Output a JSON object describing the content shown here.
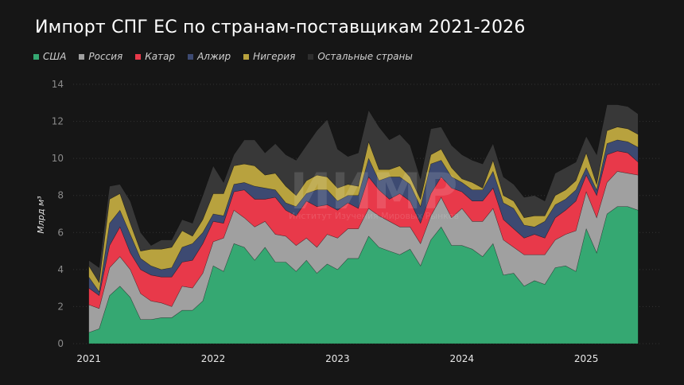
{
  "chart_data": {
    "type": "area",
    "stacked": true,
    "title": "Импорт СПГ ЕС по странам-поставщикам  2021-2026",
    "xlabel": "",
    "ylabel": "Млрд м³",
    "ylim": [
      0,
      14
    ],
    "yticks": [
      0,
      2,
      4,
      6,
      8,
      10,
      12,
      14
    ],
    "xtick_labels": [
      "2021",
      "2022",
      "2023",
      "2024",
      "2025"
    ],
    "grid": "horizontal dotted",
    "legend_position": "top-left",
    "x": [
      "2021-01",
      "2021-02",
      "2021-03",
      "2021-04",
      "2021-05",
      "2021-06",
      "2021-07",
      "2021-08",
      "2021-09",
      "2021-10",
      "2021-11",
      "2021-12",
      "2022-01",
      "2022-02",
      "2022-03",
      "2022-04",
      "2022-05",
      "2022-06",
      "2022-07",
      "2022-08",
      "2022-09",
      "2022-10",
      "2022-11",
      "2022-12",
      "2023-01",
      "2023-02",
      "2023-03",
      "2023-04",
      "2023-05",
      "2023-06",
      "2023-07",
      "2023-08",
      "2023-09",
      "2023-10",
      "2023-11",
      "2023-12",
      "2024-01",
      "2024-02",
      "2024-03",
      "2024-04",
      "2024-05",
      "2024-06",
      "2024-07",
      "2024-08",
      "2024-09",
      "2024-10",
      "2024-11",
      "2024-12",
      "2025-01",
      "2025-02",
      "2025-03",
      "2025-04",
      "2025-05",
      "2025-06"
    ],
    "series": [
      {
        "name": "США",
        "color": "#35a872",
        "values": [
          0.6,
          0.8,
          2.6,
          3.1,
          2.5,
          1.3,
          1.3,
          1.4,
          1.4,
          1.8,
          1.8,
          2.3,
          4.2,
          3.9,
          5.4,
          5.2,
          4.5,
          5.2,
          4.4,
          4.4,
          3.9,
          4.5,
          3.8,
          4.3,
          4.0,
          4.6,
          4.6,
          5.8,
          5.2,
          5.0,
          4.8,
          5.1,
          4.2,
          5.6,
          6.3,
          5.3,
          5.3,
          5.1,
          4.7,
          5.4,
          3.7,
          3.8,
          3.1,
          3.4,
          3.2,
          4.1,
          4.2,
          3.9,
          6.2,
          4.9,
          7.0,
          7.4,
          7.4,
          7.2
        ]
      },
      {
        "name": "Россия",
        "color": "#a0a0a0",
        "values": [
          1.5,
          1.1,
          1.5,
          1.6,
          1.5,
          1.4,
          1.0,
          0.8,
          0.6,
          1.3,
          1.2,
          1.5,
          1.3,
          1.8,
          1.8,
          1.6,
          1.8,
          1.4,
          1.5,
          1.4,
          1.4,
          1.2,
          1.4,
          1.6,
          1.7,
          1.6,
          1.6,
          1.5,
          1.7,
          1.6,
          1.5,
          1.2,
          1.2,
          1.3,
          1.6,
          1.5,
          2.0,
          1.5,
          1.9,
          1.9,
          1.9,
          1.4,
          1.7,
          1.4,
          1.6,
          1.5,
          1.7,
          2.2,
          2.0,
          1.9,
          1.7,
          1.9,
          1.8,
          1.9
        ]
      },
      {
        "name": "Катар",
        "color": "#e8394a",
        "values": [
          0.9,
          0.7,
          1.2,
          1.6,
          0.9,
          1.3,
          1.4,
          1.4,
          1.6,
          1.3,
          1.5,
          1.6,
          1.1,
          0.8,
          1.0,
          1.5,
          1.5,
          1.2,
          2.0,
          1.4,
          1.6,
          2.0,
          2.2,
          1.6,
          1.5,
          1.4,
          1.1,
          1.7,
          1.4,
          1.2,
          1.8,
          1.4,
          1.1,
          1.2,
          1.1,
          1.6,
          0.9,
          1.1,
          1.1,
          1.1,
          1.1,
          1.0,
          0.9,
          1.1,
          0.9,
          1.2,
          1.3,
          1.6,
          0.9,
          1.2,
          1.5,
          1.1,
          1.1,
          0.7
        ]
      },
      {
        "name": "Алжир",
        "color": "#3d4a72",
        "values": [
          0.6,
          0.2,
          1.2,
          0.9,
          1.0,
          0.6,
          0.5,
          0.4,
          0.5,
          0.8,
          0.9,
          0.6,
          0.4,
          0.4,
          0.4,
          0.4,
          0.7,
          0.6,
          0.4,
          0.4,
          0.5,
          0.4,
          0.9,
          0.8,
          0.5,
          0.4,
          0.7,
          1.0,
          0.5,
          1.2,
          0.9,
          0.9,
          0.9,
          1.6,
          0.9,
          0.6,
          0.5,
          0.6,
          0.6,
          0.9,
          0.9,
          1.1,
          0.7,
          0.4,
          0.9,
          0.7,
          0.6,
          0.6,
          0.4,
          0.3,
          0.6,
          0.6,
          0.6,
          0.8
        ]
      },
      {
        "name": "Нигерия",
        "color": "#b8a23e",
        "values": [
          0.6,
          0.5,
          1.3,
          0.9,
          0.6,
          0.4,
          0.9,
          1.1,
          1.1,
          0.9,
          0.4,
          0.7,
          1.1,
          1.2,
          1.0,
          1.0,
          1.1,
          0.7,
          0.9,
          0.9,
          0.6,
          0.7,
          0.8,
          0.7,
          0.7,
          0.6,
          0.5,
          0.9,
          0.6,
          0.4,
          0.6,
          0.4,
          0.4,
          0.5,
          0.6,
          0.5,
          0.2,
          0.4,
          0.1,
          0.6,
          0.4,
          0.4,
          0.4,
          0.6,
          0.3,
          0.5,
          0.5,
          0.5,
          0.8,
          0.3,
          0.7,
          0.7,
          0.7,
          0.7
        ]
      },
      {
        "name": "Остальные страны",
        "color": "#383838",
        "values": [
          0.3,
          0.8,
          0.7,
          0.5,
          1.2,
          1.0,
          0.2,
          0.5,
          0.4,
          0.6,
          0.7,
          1.3,
          1.5,
          0.6,
          0.6,
          1.3,
          1.4,
          1.2,
          1.6,
          1.7,
          1.9,
          1.9,
          2.4,
          3.1,
          2.1,
          1.5,
          1.8,
          1.7,
          2.3,
          1.6,
          1.7,
          1.7,
          1.1,
          1.4,
          1.2,
          1.2,
          1.3,
          1.2,
          1.3,
          0.9,
          1.0,
          0.9,
          1.1,
          1.1,
          0.8,
          1.2,
          1.2,
          1.0,
          0.9,
          1.6,
          1.4,
          1.2,
          1.2,
          1.1
        ]
      }
    ]
  },
  "watermark": {
    "logo": "ИИМР",
    "caption": "Институт Изучения Мировых Рынков"
  }
}
